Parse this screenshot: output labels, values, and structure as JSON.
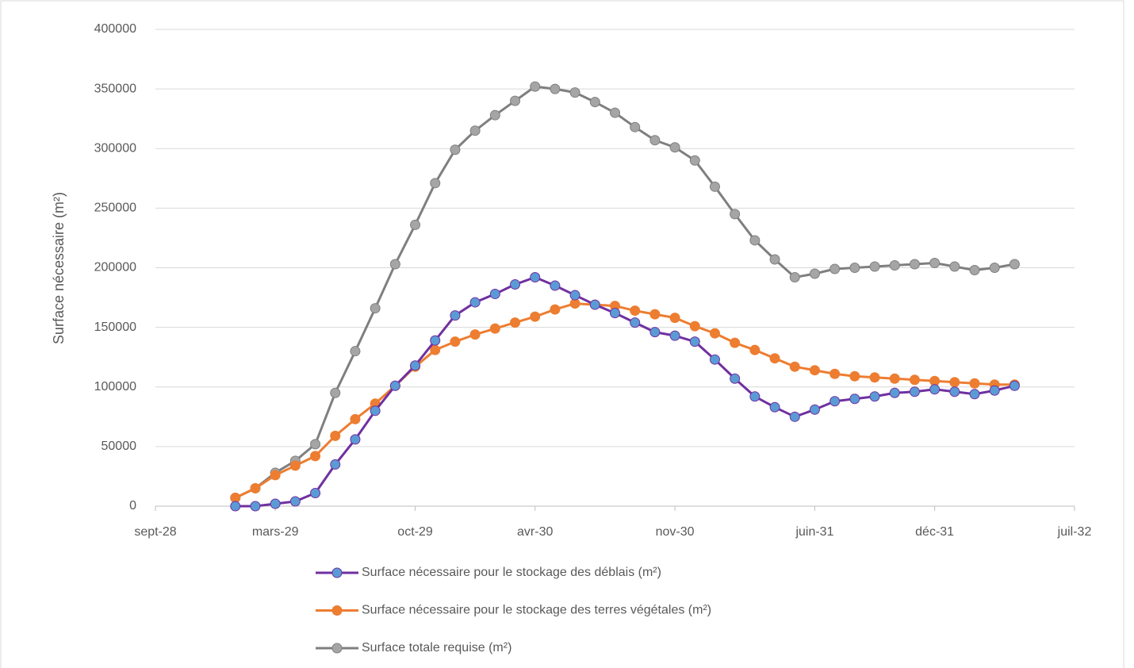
{
  "chart_data": {
    "type": "line",
    "y_label": "Surface nécessaire (m²)",
    "x": [
      "2029-01",
      "2029-02",
      "2029-03",
      "2029-04",
      "2029-05",
      "2029-06",
      "2029-07",
      "2029-08",
      "2029-09",
      "2029-10",
      "2029-11",
      "2029-12",
      "2030-01",
      "2030-02",
      "2030-03",
      "2030-04",
      "2030-05",
      "2030-06",
      "2030-07",
      "2030-08",
      "2030-09",
      "2030-10",
      "2030-11",
      "2030-12",
      "2031-01",
      "2031-02",
      "2031-03",
      "2031-04",
      "2031-05",
      "2031-06",
      "2031-07",
      "2031-08",
      "2031-09",
      "2031-10",
      "2031-11",
      "2031-12",
      "2032-01",
      "2032-02",
      "2032-03",
      "2032-04"
    ],
    "series": [
      {
        "name": "Surface nécessaire pour le stockage des déblais (m²)",
        "color": "#7030a0",
        "marker_fill": "#5b9bd5",
        "values": [
          0,
          0,
          2000,
          4000,
          11000,
          35000,
          56000,
          80000,
          101000,
          118000,
          139000,
          160000,
          171000,
          178000,
          186000,
          192000,
          185000,
          177000,
          169000,
          162000,
          154000,
          146000,
          143000,
          138000,
          123000,
          107000,
          92000,
          83000,
          75000,
          81000,
          88000,
          90000,
          92000,
          95000,
          96000,
          98000,
          96000,
          94000,
          97000,
          101000
        ]
      },
      {
        "name": "Surface nécessaire pour le stockage des terres végétales (m²)",
        "color": "#ed7d31",
        "marker_fill": "#ed7d31",
        "values": [
          7000,
          15000,
          26000,
          34000,
          42000,
          59000,
          73000,
          86000,
          101000,
          117000,
          131000,
          138000,
          144000,
          149000,
          154000,
          159000,
          165000,
          170000,
          169000,
          168000,
          164000,
          161000,
          158000,
          151000,
          145000,
          137000,
          131000,
          124000,
          117000,
          114000,
          111000,
          109000,
          108000,
          107000,
          106000,
          105000,
          104000,
          103000,
          102000,
          102000
        ]
      },
      {
        "name": "Surface totale requise (m²)",
        "color": "#7f7f7f",
        "marker_fill": "#a5a5a5",
        "values": [
          7000,
          15000,
          28000,
          38000,
          52000,
          95000,
          130000,
          166000,
          203000,
          236000,
          271000,
          299000,
          315000,
          328000,
          340000,
          352000,
          350000,
          347000,
          339000,
          330000,
          318000,
          307000,
          301000,
          290000,
          268000,
          245000,
          223000,
          207000,
          192000,
          195000,
          199000,
          200000,
          201000,
          202000,
          203000,
          204000,
          201000,
          198000,
          200000,
          203000
        ]
      }
    ],
    "xlim": [
      "2028-09",
      "2032-07"
    ],
    "xticks": [
      {
        "value": "2028-09",
        "label": "sept-28"
      },
      {
        "value": "2029-03",
        "label": "mars-29"
      },
      {
        "value": "2029-10",
        "label": "oct-29"
      },
      {
        "value": "2030-04",
        "label": "avr-30"
      },
      {
        "value": "2030-11",
        "label": "nov-30"
      },
      {
        "value": "2031-06",
        "label": "juin-31"
      },
      {
        "value": "2031-12",
        "label": "déc-31"
      },
      {
        "value": "2032-07",
        "label": "juil-32"
      }
    ],
    "ylim": [
      0,
      400000
    ],
    "yticks": [
      0,
      50000,
      100000,
      150000,
      200000,
      250000,
      300000,
      350000,
      400000
    ],
    "grid": true,
    "legend": "bottom"
  }
}
